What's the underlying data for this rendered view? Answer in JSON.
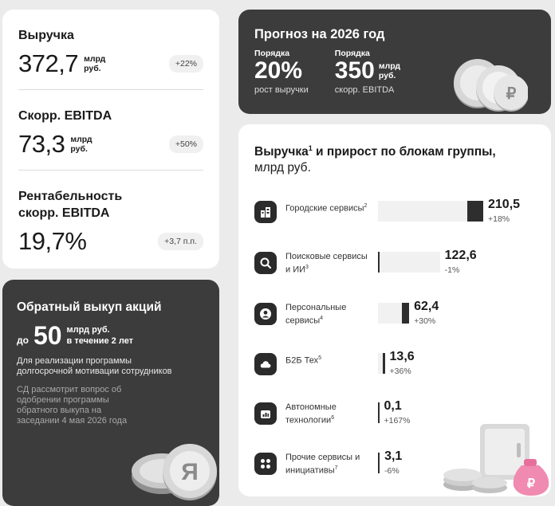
{
  "metrics": [
    {
      "label": "Выручка",
      "value": "372,7",
      "unit_line1": "млрд",
      "unit_line2": "руб.",
      "badge": "+22%"
    },
    {
      "label": "Скорр. EBITDA",
      "value": "73,3",
      "unit_line1": "млрд",
      "unit_line2": "руб.",
      "badge": "+50%"
    },
    {
      "label_line1": "Рентабельность",
      "label_line2": "скорр. EBITDA",
      "value": "19,7%",
      "badge": "+3,7 п.п."
    }
  ],
  "buyback": {
    "title": "Обратный выкуп акций",
    "prefix": "до",
    "amount": "50",
    "unit_line1": "млрд руб.",
    "unit_line2": "в течение 2 лет",
    "description": "Для реализации программы долгосрочной мотивации сотрудников",
    "note": "СД рассмотрит вопрос об одобрении программы обратного выкупа на заседании 4 мая 2026 года"
  },
  "forecast": {
    "title": "Прогноз на 2026 год",
    "items": [
      {
        "small": "Порядка",
        "value": "20%",
        "unit_line1": "",
        "unit_line2": "",
        "caption": "рост выручки"
      },
      {
        "small": "Порядка",
        "value": "350",
        "unit_line1": "млрд",
        "unit_line2": "руб.",
        "caption": "скорр. EBITDA"
      }
    ]
  },
  "segments": {
    "title": "Выручка",
    "title_sup": "1",
    "title_rest": " и прирост по блокам группы,",
    "subtitle": "млрд руб.",
    "items": [
      {
        "name": "Городские сервисы",
        "sup": "2",
        "value": "210,5",
        "growth": "+18%",
        "icon": "city-icon",
        "current": 210.5,
        "previous": 178.4
      },
      {
        "name": "Поисковые сервисы и ИИ",
        "sup": "3",
        "value": "122,6",
        "growth": "-1%",
        "icon": "search-icon",
        "current": 122.6,
        "previous": 123.8
      },
      {
        "name": "Персональные сервисы",
        "sup": "4",
        "value": "62,4",
        "growth": "+30%",
        "icon": "person-icon",
        "current": 62.4,
        "previous": 48.0
      },
      {
        "name": "Б2Б Тех",
        "sup": "5",
        "value": "13,6",
        "growth": "+36%",
        "icon": "cloud-icon",
        "current": 13.6,
        "previous": 10.0
      },
      {
        "name": "Автономные технологии",
        "sup": "6",
        "value": "0,1",
        "growth": "+167%",
        "icon": "robot-icon",
        "current": 0.1,
        "previous": 0.04
      },
      {
        "name": "Прочие сервисы и инициативы",
        "sup": "7",
        "value": "3,1",
        "growth": "-6%",
        "icon": "grid-icon",
        "current": 3.1,
        "previous": 3.3
      }
    ]
  }
}
